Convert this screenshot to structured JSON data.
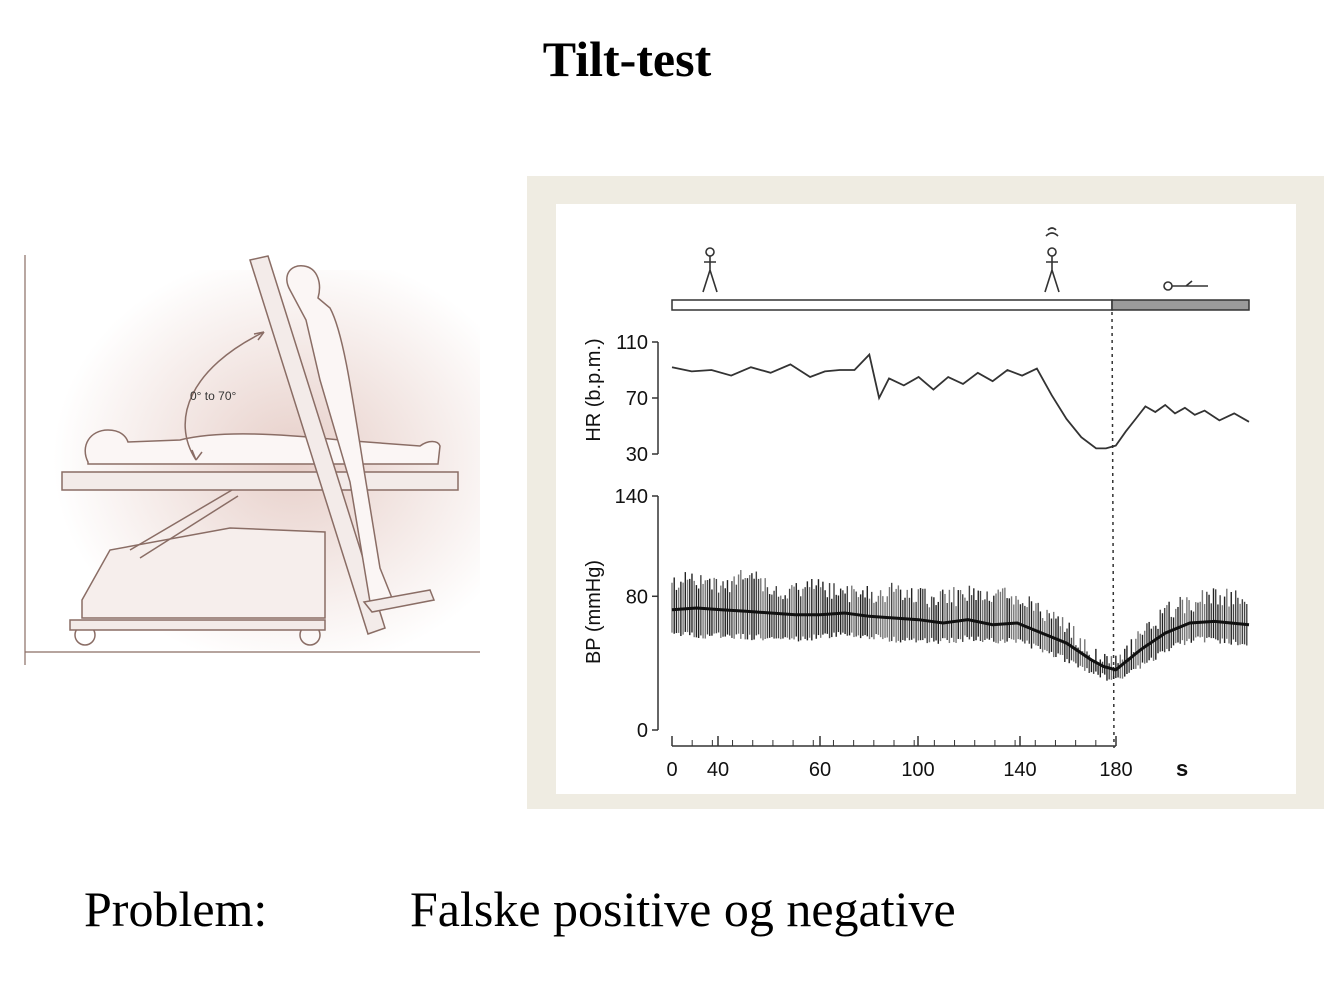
{
  "title": "Tilt-test",
  "illustration": {
    "angle_label": "0° to 70°"
  },
  "chart_data": [
    {
      "type": "line",
      "panel": "top",
      "ylabel": "HR (b.p.m.)",
      "yticks": [
        110,
        70,
        30
      ],
      "ylim": [
        30,
        110
      ],
      "series": [
        {
          "x": [
            0,
            8,
            16,
            24,
            32,
            40,
            48,
            56,
            62,
            68,
            74,
            80,
            84,
            88,
            94,
            100,
            106,
            112,
            118,
            124,
            130,
            136,
            142,
            148,
            154,
            160,
            166,
            172,
            176,
            180,
            184,
            188,
            192,
            196,
            200,
            204,
            208,
            212,
            216,
            222,
            228,
            234
          ],
          "values": [
            92,
            89,
            90,
            86,
            92,
            88,
            94,
            85,
            89,
            90,
            90,
            101,
            70,
            84,
            79,
            85,
            76,
            85,
            80,
            88,
            82,
            90,
            86,
            91,
            72,
            55,
            42,
            34,
            34,
            36,
            46,
            55,
            64,
            60,
            65,
            59,
            63,
            58,
            61,
            54,
            59,
            53
          ]
        }
      ]
    },
    {
      "type": "area",
      "panel": "bottom",
      "ylabel": "BP (mmHg)",
      "yticks": [
        140,
        80,
        0
      ],
      "ylim": [
        0,
        140
      ],
      "xlabel": "s",
      "xticks": [
        "0",
        "40",
        "60",
        "100",
        "140",
        "180"
      ],
      "series": [
        {
          "x": [
            0,
            10,
            20,
            30,
            40,
            50,
            60,
            70,
            80,
            90,
            100,
            110,
            120,
            130,
            140,
            150,
            160,
            170,
            175,
            180,
            190,
            200,
            210,
            220,
            234
          ],
          "mean": [
            72,
            73,
            72,
            71,
            70,
            69,
            69,
            70,
            68,
            67,
            66,
            64,
            66,
            63,
            64,
            58,
            52,
            42,
            38,
            36,
            48,
            58,
            64,
            65,
            63
          ],
          "high": [
            94,
            96,
            93,
            97,
            92,
            88,
            92,
            88,
            86,
            89,
            85,
            84,
            88,
            86,
            86,
            76,
            68,
            52,
            46,
            45,
            62,
            76,
            82,
            86,
            84
          ],
          "low": [
            56,
            54,
            55,
            54,
            53,
            52,
            54,
            55,
            54,
            52,
            52,
            51,
            53,
            51,
            52,
            46,
            40,
            33,
            30,
            28,
            36,
            45,
            52,
            52,
            50
          ]
        }
      ]
    }
  ],
  "caption": {
    "label": "Problem:",
    "text": "Falske positive og negative"
  }
}
